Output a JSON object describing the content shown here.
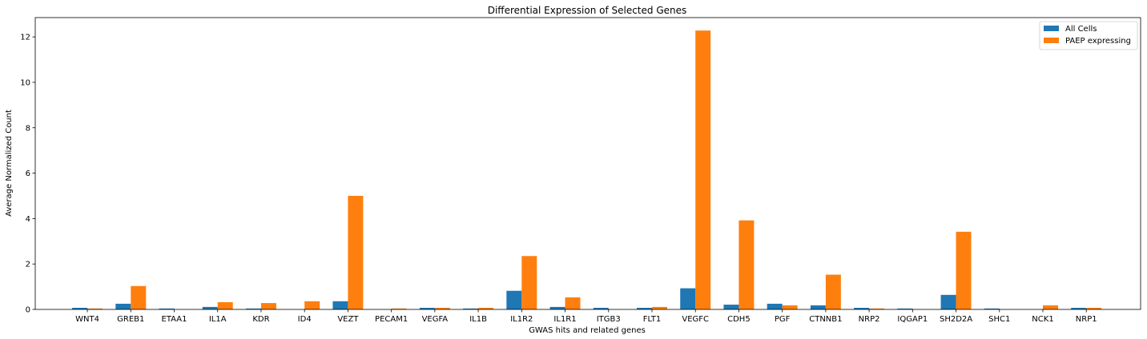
{
  "chart_data": {
    "type": "bar",
    "title": "Differential Expression of Selected Genes",
    "xlabel": "GWAS hits and related genes",
    "ylabel": "Average Normalized Count",
    "ylim": [
      0,
      12.85
    ],
    "yticks": [
      0,
      2,
      4,
      6,
      8,
      10,
      12
    ],
    "grid": false,
    "legend_position": "top-right",
    "categories": [
      "WNT4",
      "GREB1",
      "ETAA1",
      "IL1A",
      "KDR",
      "ID4",
      "VEZT",
      "PECAM1",
      "VEGFA",
      "IL1B",
      "IL1R2",
      "IL1R1",
      "ITGB3",
      "FLT1",
      "VEGFC",
      "CDH5",
      "PGF",
      "CTNNB1",
      "NRP2",
      "IQGAP1",
      "SH2D2A",
      "SHC1",
      "NCK1",
      "NRP1"
    ],
    "series": [
      {
        "name": "All Cells",
        "color": "#1f77b4",
        "values": [
          0.07,
          0.25,
          0.04,
          0.11,
          0.04,
          0.0,
          0.36,
          0.0,
          0.07,
          0.04,
          0.82,
          0.11,
          0.07,
          0.07,
          0.93,
          0.21,
          0.25,
          0.18,
          0.07,
          0.04,
          0.64,
          0.04,
          0.0,
          0.07
        ]
      },
      {
        "name": "PAEP expressing",
        "color": "#ff7f0e",
        "values": [
          0.04,
          1.03,
          0.0,
          0.32,
          0.28,
          0.36,
          5.0,
          0.04,
          0.07,
          0.07,
          2.35,
          0.53,
          0.0,
          0.11,
          12.28,
          3.92,
          0.18,
          1.53,
          0.04,
          0.0,
          3.42,
          0.0,
          0.18,
          0.07
        ]
      }
    ]
  }
}
